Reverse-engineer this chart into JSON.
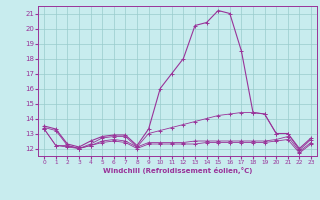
{
  "xlabel": "Windchill (Refroidissement éolien,°C)",
  "background_color": "#c8ecee",
  "grid_color": "#99cccc",
  "line_color": "#993399",
  "xlim": [
    -0.5,
    23.5
  ],
  "ylim": [
    11.5,
    21.5
  ],
  "xticks": [
    0,
    1,
    2,
    3,
    4,
    5,
    6,
    7,
    8,
    9,
    10,
    11,
    12,
    13,
    14,
    15,
    16,
    17,
    18,
    19,
    20,
    21,
    22,
    23
  ],
  "yticks": [
    12,
    13,
    14,
    15,
    16,
    17,
    18,
    19,
    20,
    21
  ],
  "line_high": [
    13.5,
    13.3,
    12.3,
    12.1,
    12.5,
    12.8,
    12.9,
    12.9,
    12.2,
    13.3,
    16.0,
    17.0,
    18.0,
    20.2,
    20.4,
    21.2,
    21.0,
    18.5,
    14.4,
    14.3,
    13.0,
    13.0,
    12.0,
    12.7
  ],
  "line_mid": [
    13.4,
    13.2,
    12.2,
    12.0,
    12.3,
    12.7,
    12.8,
    12.8,
    12.1,
    13.0,
    13.2,
    13.4,
    13.6,
    13.8,
    14.0,
    14.2,
    14.3,
    14.4,
    14.4,
    14.3,
    13.0,
    13.0,
    11.9,
    12.6
  ],
  "line_low1": [
    13.3,
    12.2,
    12.2,
    12.0,
    12.2,
    12.5,
    12.6,
    12.5,
    12.1,
    12.4,
    12.4,
    12.4,
    12.4,
    12.5,
    12.5,
    12.5,
    12.5,
    12.5,
    12.5,
    12.5,
    12.6,
    12.8,
    11.8,
    12.4
  ],
  "line_low2": [
    13.3,
    12.2,
    12.1,
    12.0,
    12.2,
    12.4,
    12.5,
    12.4,
    12.0,
    12.3,
    12.3,
    12.3,
    12.3,
    12.3,
    12.4,
    12.4,
    12.4,
    12.4,
    12.4,
    12.4,
    12.5,
    12.6,
    11.7,
    12.3
  ]
}
